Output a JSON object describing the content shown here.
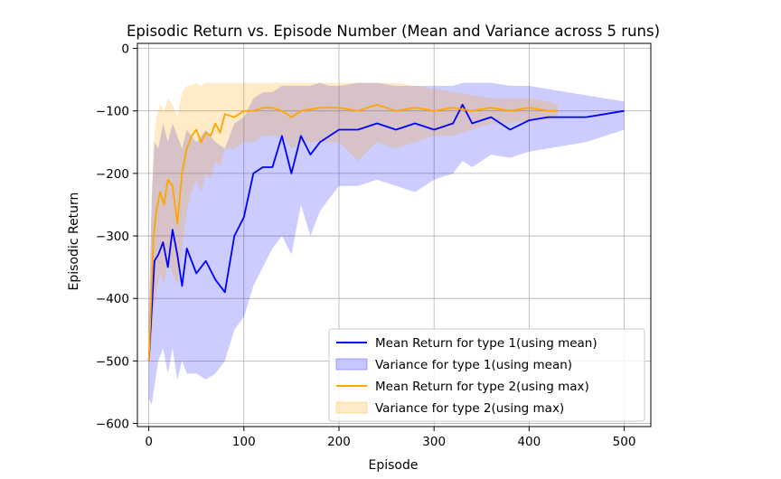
{
  "chart_data": {
    "type": "line",
    "title": "Episodic Return vs. Episode Number (Mean and Variance across 5 runs)",
    "xlabel": "Episode",
    "ylabel": "Episodic Return",
    "xlim": [
      -12,
      528
    ],
    "ylim": [
      -605,
      8
    ],
    "xticks": [
      0,
      100,
      200,
      300,
      400,
      500
    ],
    "yticks": [
      0,
      -100,
      -200,
      -300,
      -400,
      -500,
      -600
    ],
    "xtick_labels": [
      "0",
      "100",
      "200",
      "300",
      "400",
      "500"
    ],
    "ytick_labels": [
      "0",
      "−100",
      "−200",
      "−300",
      "−400",
      "−500",
      "−600"
    ],
    "grid": true,
    "legend_position": "bottom-right",
    "legend": [
      {
        "label": "Mean Return for type 1(using mean)",
        "kind": "line",
        "color": "#0000ff"
      },
      {
        "label": "Variance for type 1(using mean)",
        "kind": "band",
        "color": "#0000ff"
      },
      {
        "label": "Mean Return for type 2(using max)",
        "kind": "line",
        "color": "#ffa500"
      },
      {
        "label": "Variance for type 2(using max)",
        "kind": "band",
        "color": "#ffa500"
      }
    ],
    "series": [
      {
        "name": "Mean Return for type 1(using mean)",
        "color": "#0000ff",
        "x": [
          0,
          3,
          6,
          10,
          15,
          20,
          25,
          30,
          35,
          40,
          50,
          60,
          70,
          80,
          90,
          100,
          110,
          120,
          130,
          140,
          150,
          160,
          170,
          180,
          190,
          200,
          220,
          240,
          260,
          280,
          300,
          320,
          330,
          340,
          360,
          380,
          400,
          420,
          440,
          460,
          480,
          500
        ],
        "mean": [
          -500,
          -420,
          -340,
          -330,
          -310,
          -350,
          -290,
          -330,
          -380,
          -320,
          -360,
          -340,
          -370,
          -390,
          -300,
          -270,
          -200,
          -190,
          -190,
          -140,
          -200,
          -140,
          -170,
          -150,
          -140,
          -130,
          -130,
          -120,
          -130,
          -120,
          -130,
          -120,
          -90,
          -120,
          -110,
          -130,
          -115,
          -110,
          -110,
          -110,
          -105,
          -100
        ],
        "lower": [
          -560,
          -570,
          -540,
          -500,
          -480,
          -520,
          -480,
          -530,
          -500,
          -520,
          -520,
          -530,
          -520,
          -500,
          -450,
          -430,
          -380,
          -350,
          -320,
          -300,
          -330,
          -250,
          -300,
          -260,
          -240,
          -220,
          -220,
          -210,
          -220,
          -230,
          -210,
          -200,
          -180,
          -190,
          -170,
          -175,
          -165,
          -160,
          -155,
          -150,
          -140,
          -130
        ],
        "upper": [
          -430,
          -240,
          -150,
          -160,
          -120,
          -150,
          -120,
          -140,
          -160,
          -130,
          -150,
          -130,
          -150,
          -160,
          -120,
          -110,
          -80,
          -70,
          -70,
          -60,
          -60,
          -60,
          -60,
          -55,
          -60,
          -60,
          -55,
          -55,
          -60,
          -60,
          -60,
          -60,
          -55,
          -55,
          -55,
          -60,
          -60,
          -65,
          -70,
          -75,
          -80,
          -85
        ]
      },
      {
        "name": "Mean Return for type 2(using max)",
        "color": "#ffa500",
        "x": [
          0,
          3,
          5,
          8,
          12,
          16,
          20,
          25,
          30,
          35,
          40,
          45,
          50,
          55,
          60,
          65,
          70,
          75,
          80,
          90,
          100,
          110,
          120,
          130,
          140,
          150,
          160,
          180,
          200,
          220,
          240,
          260,
          280,
          300,
          320,
          340,
          360,
          380,
          400,
          420,
          430
        ],
        "mean": [
          -500,
          -380,
          -300,
          -260,
          -230,
          -250,
          -210,
          -220,
          -280,
          -200,
          -160,
          -140,
          -130,
          -150,
          -135,
          -140,
          -120,
          -135,
          -105,
          -110,
          -100,
          -100,
          -95,
          -95,
          -100,
          -110,
          -100,
          -95,
          -95,
          -100,
          -90,
          -100,
          -95,
          -100,
          -95,
          -100,
          -95,
          -100,
          -95,
          -100,
          -100
        ],
        "lower": [
          -510,
          -470,
          -420,
          -390,
          -360,
          -380,
          -340,
          -360,
          -380,
          -320,
          -260,
          -230,
          -210,
          -230,
          -200,
          -210,
          -180,
          -190,
          -160,
          -160,
          -150,
          -150,
          -140,
          -140,
          -140,
          -160,
          -150,
          -150,
          -150,
          -180,
          -150,
          -160,
          -150,
          -140,
          -140,
          -130,
          -120,
          -120,
          -115,
          -115,
          -110
        ],
        "upper": [
          -470,
          -240,
          -150,
          -110,
          -90,
          -100,
          -80,
          -90,
          -110,
          -70,
          -60,
          -60,
          -55,
          -60,
          -55,
          -55,
          -55,
          -55,
          -55,
          -55,
          -55,
          -55,
          -55,
          -55,
          -55,
          -55,
          -55,
          -55,
          -55,
          -55,
          -55,
          -55,
          -60,
          -65,
          -70,
          -75,
          -80,
          -80,
          -80,
          -85,
          -90
        ]
      }
    ]
  }
}
